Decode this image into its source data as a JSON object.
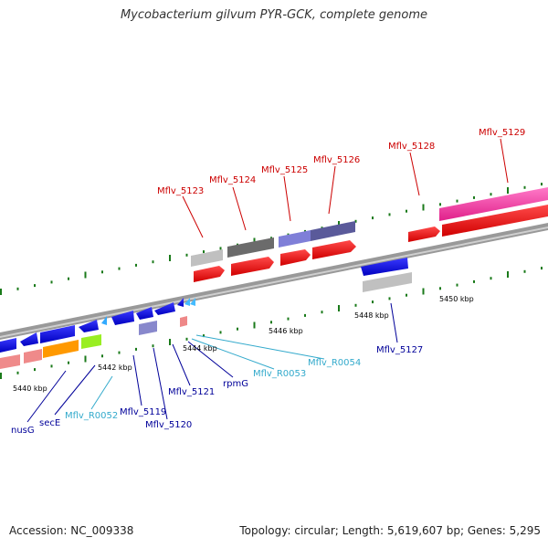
{
  "title": "Mycobacterium gilvum PYR-GCK, complete genome",
  "footer": {
    "accession": "Accession: NC_009338",
    "summary": "Topology: circular; Length: 5,619,607 bp; Genes: 5,295"
  },
  "scale_labels": [
    "5440 kbp",
    "5442 kbp",
    "5444 kbp",
    "5446 kbp",
    "5448 kbp",
    "5450 kbp"
  ],
  "upper_genes": [
    "Mflv_5123",
    "Mflv_5124",
    "Mflv_5125",
    "Mflv_5126",
    "Mflv_5128",
    "Mflv_5129"
  ],
  "lower_genes": [
    "nusG",
    "secE",
    "Mflv_R0052",
    "Mflv_5119",
    "Mflv_5120",
    "Mflv_5121",
    "rpmG",
    "Mflv_R0053",
    "Mflv_R0054",
    "Mflv_5127"
  ],
  "colors": {
    "plus_strand_label": "#cc0000",
    "minus_strand_label": "#000099",
    "rna_label": "#33aacc",
    "backbone": "#888888",
    "tick": "#1a7a1a"
  }
}
